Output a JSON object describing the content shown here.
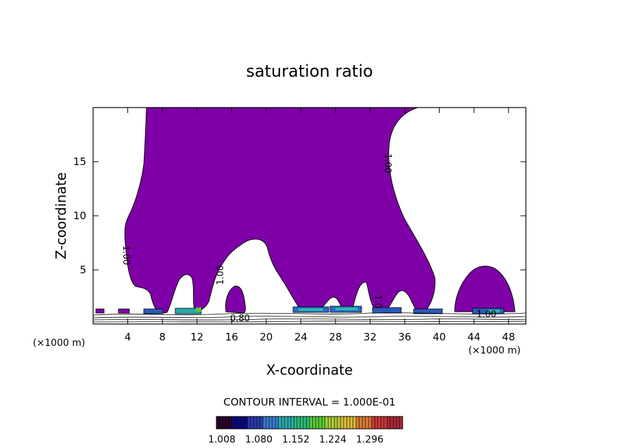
{
  "chart_data": {
    "type": "contour",
    "title": "saturation ratio",
    "xlabel": "X-coordinate",
    "ylabel": "Z-coordinate",
    "x_units_left": "(×1000 m)",
    "x_units_right": "(×1000 m)",
    "xlim": [
      0,
      50
    ],
    "ylim": [
      0,
      20
    ],
    "x_ticks": [
      4,
      8,
      12,
      16,
      20,
      24,
      28,
      32,
      36,
      40,
      44,
      48
    ],
    "y_ticks": [
      5,
      10,
      15
    ],
    "contour_interval_text": "CONTOUR INTERVAL = 1.000E-01",
    "contour_labels": [
      "1.00",
      "1.00",
      "1.00",
      "1.0",
      "0.80",
      "1.00"
    ],
    "colorbar": {
      "ticks": [
        "1.008",
        "1.080",
        "1.152",
        "1.224",
        "1.296"
      ],
      "colors": [
        "#2a002a",
        "#0a0a7a",
        "#2a3aa8",
        "#3a7ac8",
        "#2aa8a8",
        "#2ab878",
        "#5ac838",
        "#a8c838",
        "#d8b838",
        "#d87838",
        "#c83838",
        "#a82838"
      ]
    },
    "fill_color": "#7e00a6",
    "grid": false
  }
}
